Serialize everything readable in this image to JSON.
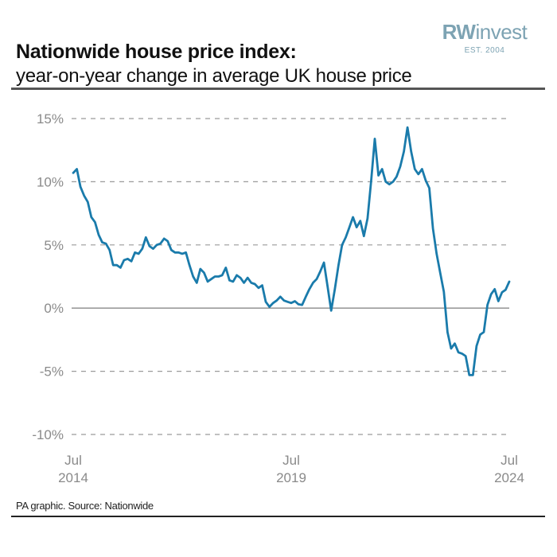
{
  "header": {
    "title": "Nationwide house price index:",
    "subtitle": "year-on-year change in average UK house price"
  },
  "logo": {
    "name_bold": "RW",
    "name_rest": "invest",
    "tagline": "EST. 2004",
    "color": "#7da3b3"
  },
  "footer": {
    "source": "PA graphic. Source: Nationwide"
  },
  "chart_data": {
    "type": "line",
    "title": "Nationwide house price index: year-on-year change in average UK house price",
    "xlabel": "",
    "ylabel": "",
    "ylim": [
      -10,
      15
    ],
    "yticks": [
      15,
      10,
      5,
      0,
      -5,
      -10
    ],
    "ytick_labels": [
      "15%",
      "10%",
      "5%",
      "0%",
      "-5%",
      "-10%"
    ],
    "xticks": [
      {
        "month_index": 0,
        "line1": "Jul",
        "line2": "2014"
      },
      {
        "month_index": 60,
        "line1": "Jul",
        "line2": "2019"
      },
      {
        "month_index": 120,
        "line1": "Jul",
        "line2": "2024"
      }
    ],
    "x_start": "Jul 2014",
    "x_end": "Jul 2024",
    "x_unit": "months since Jul 2014",
    "grid": "horizontal dashed",
    "legend": "none",
    "line_color": "#1a7bab",
    "series": [
      {
        "name": "Annual change in UK house prices (%)",
        "values": [
          10.7,
          11.0,
          9.6,
          8.9,
          8.4,
          7.2,
          6.8,
          5.8,
          5.2,
          5.1,
          4.6,
          3.4,
          3.4,
          3.2,
          3.8,
          3.9,
          3.7,
          4.4,
          4.3,
          4.7,
          5.6,
          4.9,
          4.7,
          5.0,
          5.1,
          5.5,
          5.3,
          4.6,
          4.4,
          4.4,
          4.3,
          4.4,
          3.4,
          2.5,
          2.0,
          3.1,
          2.8,
          2.1,
          2.3,
          2.5,
          2.5,
          2.6,
          3.2,
          2.2,
          2.1,
          2.6,
          2.4,
          2.0,
          2.4,
          2.0,
          1.9,
          1.6,
          1.8,
          0.5,
          0.1,
          0.4,
          0.6,
          0.9,
          0.6,
          0.5,
          0.4,
          0.55,
          0.3,
          0.25,
          0.9,
          1.5,
          2.0,
          2.3,
          2.9,
          3.6,
          1.7,
          -0.2,
          1.5,
          3.4,
          5.0,
          5.6,
          6.4,
          7.2,
          6.4,
          6.9,
          5.7,
          7.1,
          10.1,
          13.4,
          10.5,
          11.0,
          10.0,
          9.8,
          10.0,
          10.4,
          11.2,
          12.4,
          14.3,
          12.4,
          11.0,
          10.6,
          11.0,
          10.1,
          9.5,
          6.3,
          4.3,
          2.8,
          1.3,
          -1.9,
          -3.2,
          -2.8,
          -3.5,
          -3.6,
          -3.8,
          -5.3,
          -5.3,
          -3.0,
          -2.1,
          -1.9,
          0.25,
          1.1,
          1.5,
          0.55,
          1.25,
          1.45,
          2.1
        ]
      }
    ]
  }
}
